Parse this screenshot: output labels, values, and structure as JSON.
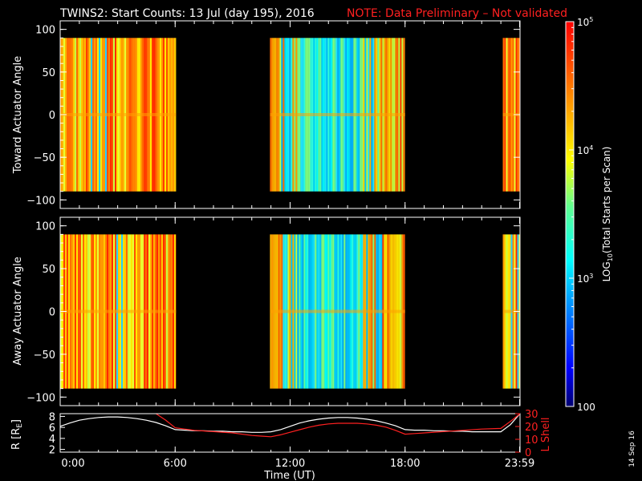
{
  "title": {
    "main": "TWINS2: Start Counts: 13 Jul (day 195), 2016",
    "note": "NOTE: Data Preliminary – Not validated"
  },
  "datestamp": "14 Sep 16",
  "colors": {
    "background": "#000000",
    "axes": "#ffffff",
    "note": "#ff2020",
    "lshell": "#ff2020",
    "radius": "#ffffff"
  },
  "colorbar": {
    "label": "LOG10(Total Starts per Scan)",
    "label_parts": [
      "LOG",
      "10",
      "(Total Starts per Scan)"
    ],
    "scale": "log",
    "range": [
      100,
      100000
    ],
    "ticks": [
      {
        "value": 100,
        "label": "100"
      },
      {
        "value": 1000,
        "label": "10",
        "exp": "3"
      },
      {
        "value": 10000,
        "label": "10",
        "exp": "4"
      },
      {
        "value": 100000,
        "label": "10",
        "exp": "5"
      }
    ]
  },
  "chart_data": [
    {
      "type": "heatmap",
      "id": "toward",
      "ylabel": "Toward Actuator Angle",
      "xlim": [
        0,
        24
      ],
      "ylim": [
        -110,
        110
      ],
      "yticks": [
        -100,
        -50,
        0,
        50,
        100
      ],
      "ytick_labels": [
        "−100",
        "−50",
        "0",
        "50",
        "100"
      ],
      "data_y_range": [
        -90,
        90
      ],
      "data_segments": [
        {
          "start_hr": 0.0,
          "end_hr": 6.05,
          "level": "high"
        },
        {
          "start_hr": 10.95,
          "end_hr": 18.0,
          "level": "low-center"
        },
        {
          "start_hr": 23.1,
          "end_hr": 24.0,
          "level": "high"
        }
      ]
    },
    {
      "type": "heatmap",
      "id": "away",
      "ylabel": "Away Actuator Angle",
      "xlim": [
        0,
        24
      ],
      "ylim": [
        -110,
        110
      ],
      "yticks": [
        -100,
        -50,
        0,
        50,
        100
      ],
      "ytick_labels": [
        "−100",
        "−50",
        "0",
        "50",
        "100"
      ],
      "data_y_range": [
        -90,
        90
      ],
      "data_segments": [
        {
          "start_hr": 0.0,
          "end_hr": 6.05,
          "level": "high"
        },
        {
          "start_hr": 10.95,
          "end_hr": 18.0,
          "level": "low-center"
        },
        {
          "start_hr": 23.1,
          "end_hr": 24.0,
          "level": "high"
        }
      ]
    },
    {
      "type": "line",
      "id": "orbit",
      "xlabel": "Time (UT)",
      "xlim": [
        0,
        24
      ],
      "xticks": [
        0,
        6,
        12,
        18,
        23.98
      ],
      "xtick_labels": [
        "0:00",
        "6:00",
        "12:00",
        "18:00",
        "23:59"
      ],
      "ylabel_left": "R [RE]",
      "ylabel_left_parts": [
        "R [R",
        "E",
        "]"
      ],
      "ylim_left": [
        1.5,
        8.5
      ],
      "yticks_left": [
        2,
        4,
        6,
        8
      ],
      "ylabel_right": "L Shell",
      "ylim_right": [
        0,
        30
      ],
      "yticks_right": [
        0,
        10,
        20,
        30
      ],
      "series": [
        {
          "axis": "left",
          "x": [
            0,
            0.5,
            1,
            1.5,
            2,
            2.5,
            3,
            3.5,
            4,
            4.5,
            5,
            5.5,
            6,
            6.5,
            7,
            7.5,
            8,
            8.5,
            9,
            9.5,
            10,
            10.5,
            11,
            11.5,
            12,
            12.5,
            13,
            13.5,
            14,
            14.5,
            15,
            15.5,
            16,
            16.5,
            17,
            17.5,
            18,
            18.5,
            19,
            19.5,
            20,
            20.5,
            21,
            21.5,
            22,
            22.5,
            23,
            23.5,
            24
          ],
          "y": [
            6.2,
            6.8,
            7.3,
            7.6,
            7.8,
            7.9,
            7.9,
            7.8,
            7.6,
            7.3,
            6.9,
            6.3,
            5.6,
            5.5,
            5.4,
            5.4,
            5.3,
            5.3,
            5.2,
            5.2,
            5.1,
            5.1,
            5.2,
            5.6,
            6.2,
            6.8,
            7.2,
            7.5,
            7.7,
            7.8,
            7.8,
            7.7,
            7.5,
            7.2,
            6.8,
            6.3,
            5.6,
            5.5,
            5.5,
            5.4,
            5.4,
            5.3,
            5.3,
            5.2,
            5.2,
            5.2,
            5.2,
            6.5,
            8.5
          ]
        },
        {
          "axis": "right",
          "x": [
            5.0,
            5.5,
            6.0,
            6.5,
            7,
            8,
            9,
            10,
            10.5,
            11,
            11.5,
            12,
            12.5,
            13,
            13.5,
            14,
            14.5,
            15,
            15.5,
            16,
            16.5,
            17,
            17.5,
            18,
            18.5,
            19,
            20,
            21,
            22,
            23,
            23.5,
            24
          ],
          "y": [
            31,
            25,
            19,
            18,
            17,
            16,
            15,
            13,
            12.5,
            12,
            13.5,
            15.5,
            17.5,
            19.5,
            21,
            22,
            22.5,
            22.5,
            22.5,
            22,
            21,
            19.5,
            17,
            14,
            14.5,
            15,
            16,
            17,
            18,
            18.5,
            24,
            31
          ]
        }
      ]
    }
  ]
}
